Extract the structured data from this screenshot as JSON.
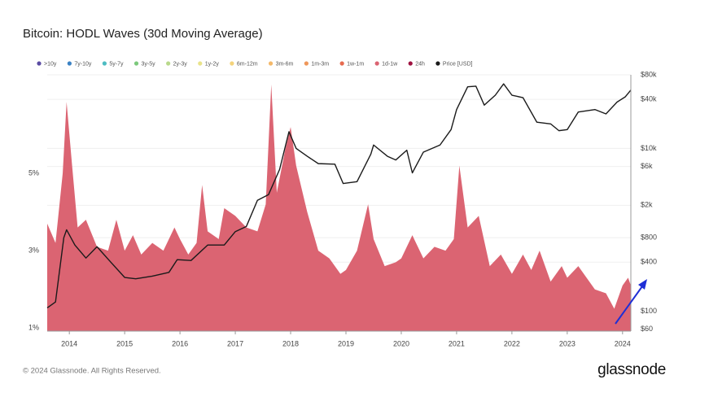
{
  "chart_data": {
    "type": "area",
    "title": "Bitcoin: HODL Waves (30d Moving Average)",
    "xlim": [
      2013.6,
      2024.15
    ],
    "xticks": [
      2014,
      2015,
      2016,
      2017,
      2018,
      2019,
      2020,
      2021,
      2022,
      2023,
      2024
    ],
    "ylim": [
      0.92,
      7.55
    ],
    "yticks": [
      {
        "value": 1,
        "label": "1%"
      },
      {
        "value": 3,
        "label": "3%"
      },
      {
        "value": 5,
        "label": "5%"
      }
    ],
    "y2lim": [
      57,
      80000
    ],
    "y2_log": true,
    "y2ticks": [
      {
        "value": 60,
        "label": "$60"
      },
      {
        "value": 100,
        "label": "$100"
      },
      {
        "value": 400,
        "label": "$400"
      },
      {
        "value": 800,
        "label": "$800"
      },
      {
        "value": 2000,
        "label": "$2k"
      },
      {
        "value": 6000,
        "label": "$6k"
      },
      {
        "value": 10000,
        "label": "$10k"
      },
      {
        "value": 40000,
        "label": "$40k"
      },
      {
        "value": 80000,
        "label": "$80k"
      }
    ],
    "grid": true,
    "series": [
      {
        "name": ">10y",
        "color": "#5b4ca3"
      },
      {
        "name": "7y-10y",
        "color": "#3b82c4"
      },
      {
        "name": "5y-7y",
        "color": "#4dbcc2"
      },
      {
        "name": "3y-5y",
        "color": "#7cc97c"
      },
      {
        "name": "2y-3y",
        "color": "#b9d98b"
      },
      {
        "name": "1y-2y",
        "color": "#e9e38a"
      },
      {
        "name": "6m-12m",
        "color": "#f4d37b"
      },
      {
        "name": "3m-6m",
        "color": "#f4b96a"
      },
      {
        "name": "1m-3m",
        "color": "#ef975a"
      },
      {
        "name": "1w-1m",
        "color": "#e66b4f"
      },
      {
        "name": "1d-1w",
        "color": "#db6472",
        "x": [
          2013.6,
          2013.75,
          2013.88,
          2013.95,
          2014.05,
          2014.15,
          2014.3,
          2014.5,
          2014.7,
          2014.85,
          2015.0,
          2015.15,
          2015.3,
          2015.5,
          2015.7,
          2015.9,
          2016.0,
          2016.15,
          2016.3,
          2016.4,
          2016.5,
          2016.7,
          2016.8,
          2017.0,
          2017.2,
          2017.4,
          2017.55,
          2017.65,
          2017.75,
          2017.9,
          2018.0,
          2018.1,
          2018.3,
          2018.5,
          2018.7,
          2018.9,
          2019.0,
          2019.2,
          2019.4,
          2019.5,
          2019.7,
          2019.9,
          2020.0,
          2020.2,
          2020.4,
          2020.6,
          2020.8,
          2020.95,
          2021.05,
          2021.2,
          2021.4,
          2021.6,
          2021.8,
          2022.0,
          2022.2,
          2022.35,
          2022.5,
          2022.7,
          2022.9,
          2023.0,
          2023.2,
          2023.5,
          2023.7,
          2023.85,
          2024.0,
          2024.1,
          2024.15
        ],
        "values": [
          3.7,
          3.2,
          5.0,
          6.85,
          5.2,
          3.6,
          3.8,
          3.1,
          3.0,
          3.8,
          3.0,
          3.4,
          2.9,
          3.2,
          3.0,
          3.6,
          3.3,
          2.9,
          3.2,
          4.7,
          3.5,
          3.3,
          4.1,
          3.9,
          3.6,
          3.5,
          4.2,
          7.3,
          4.5,
          5.6,
          6.2,
          5.2,
          4.0,
          3.0,
          2.8,
          2.4,
          2.5,
          3.0,
          4.2,
          3.3,
          2.6,
          2.7,
          2.8,
          3.4,
          2.8,
          3.1,
          3.0,
          3.3,
          5.2,
          3.6,
          3.9,
          2.6,
          2.9,
          2.4,
          2.9,
          2.5,
          3.0,
          2.2,
          2.6,
          2.3,
          2.6,
          2.0,
          1.9,
          1.5,
          2.1,
          2.3,
          2.1
        ]
      },
      {
        "name": "24h",
        "color": "#9e1240"
      },
      {
        "name": "Price [USD]",
        "color": "#1a1a1a",
        "type": "line",
        "axis": "y2",
        "x": [
          2013.6,
          2013.75,
          2013.9,
          2013.95,
          2014.1,
          2014.3,
          2014.5,
          2014.75,
          2015.0,
          2015.2,
          2015.5,
          2015.8,
          2015.95,
          2016.2,
          2016.5,
          2016.8,
          2017.0,
          2017.2,
          2017.4,
          2017.6,
          2017.8,
          2017.97,
          2018.1,
          2018.3,
          2018.5,
          2018.8,
          2018.95,
          2019.2,
          2019.45,
          2019.5,
          2019.75,
          2019.9,
          2020.1,
          2020.2,
          2020.4,
          2020.7,
          2020.9,
          2021.0,
          2021.2,
          2021.35,
          2021.5,
          2021.7,
          2021.85,
          2022.0,
          2022.2,
          2022.45,
          2022.7,
          2022.85,
          2023.0,
          2023.2,
          2023.5,
          2023.7,
          2023.9,
          2024.05,
          2024.15
        ],
        "values": [
          110,
          130,
          800,
          1000,
          650,
          450,
          620,
          400,
          260,
          250,
          270,
          300,
          430,
          420,
          650,
          650,
          950,
          1100,
          2300,
          2700,
          5500,
          16000,
          10000,
          8000,
          6500,
          6400,
          3700,
          3900,
          8500,
          11000,
          8000,
          7200,
          9500,
          5000,
          9000,
          11000,
          17000,
          30000,
          57000,
          58000,
          34000,
          45000,
          62000,
          45000,
          42000,
          21000,
          20000,
          16500,
          17000,
          28000,
          30000,
          26500,
          37000,
          43000,
          52000
        ]
      }
    ]
  },
  "footer": {
    "copyright": "© 2024 Glassnode. All Rights Reserved.",
    "logo": "glassnode"
  }
}
